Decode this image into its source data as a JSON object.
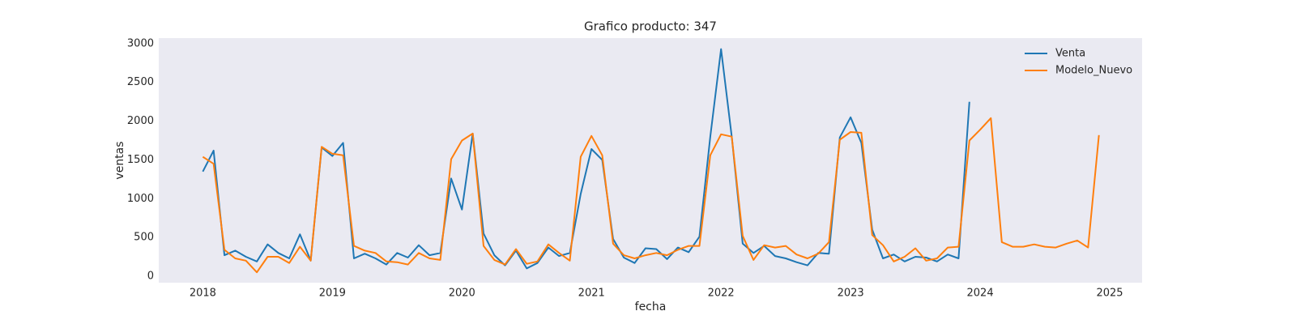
{
  "chart_data": {
    "type": "line",
    "title": "Grafico producto: 347",
    "xlabel": "fecha",
    "ylabel": "ventas",
    "x": [
      2018,
      2018.083,
      2018.167,
      2018.25,
      2018.333,
      2018.417,
      2018.5,
      2018.583,
      2018.667,
      2018.75,
      2018.833,
      2018.917,
      2019,
      2019.083,
      2019.167,
      2019.25,
      2019.333,
      2019.417,
      2019.5,
      2019.583,
      2019.667,
      2019.75,
      2019.833,
      2019.917,
      2020,
      2020.083,
      2020.167,
      2020.25,
      2020.333,
      2020.417,
      2020.5,
      2020.583,
      2020.667,
      2020.75,
      2020.833,
      2020.917,
      2021,
      2021.083,
      2021.167,
      2021.25,
      2021.333,
      2021.417,
      2021.5,
      2021.583,
      2021.667,
      2021.75,
      2021.833,
      2021.917,
      2022,
      2022.083,
      2022.167,
      2022.25,
      2022.333,
      2022.417,
      2022.5,
      2022.583,
      2022.667,
      2022.75,
      2022.833,
      2022.917,
      2023,
      2023.083,
      2023.167,
      2023.25,
      2023.333,
      2023.417,
      2023.5,
      2023.583,
      2023.667,
      2023.75,
      2023.833,
      2023.917,
      2024,
      2024.083,
      2024.167,
      2024.25,
      2024.333,
      2024.417,
      2024.5,
      2024.583,
      2024.667,
      2024.75,
      2024.833,
      2024.917
    ],
    "series": [
      {
        "name": "Venta",
        "color": "#1f77b4",
        "values": [
          1350,
          1620,
          270,
          330,
          250,
          190,
          410,
          300,
          230,
          540,
          200,
          1660,
          1550,
          1720,
          230,
          290,
          230,
          150,
          300,
          240,
          400,
          270,
          300,
          1260,
          860,
          1840,
          550,
          270,
          140,
          330,
          100,
          170,
          370,
          260,
          300,
          1060,
          1640,
          1500,
          480,
          240,
          170,
          360,
          350,
          220,
          370,
          310,
          510,
          1800,
          2930,
          1800,
          420,
          300,
          390,
          260,
          230,
          180,
          140,
          300,
          290,
          1790,
          2050,
          1720,
          600,
          230,
          280,
          190,
          250,
          240,
          190,
          280,
          230,
          2250,
          null,
          null,
          null,
          null,
          null,
          null,
          null,
          null,
          null,
          null,
          null,
          null
        ]
      },
      {
        "name": "Modelo_Nuevo",
        "color": "#ff7f0e",
        "values": [
          1540,
          1450,
          340,
          230,
          200,
          50,
          250,
          250,
          170,
          380,
          200,
          1670,
          1580,
          1560,
          390,
          330,
          300,
          190,
          180,
          150,
          300,
          230,
          210,
          1510,
          1750,
          1840,
          390,
          210,
          150,
          350,
          160,
          190,
          410,
          300,
          200,
          1540,
          1810,
          1560,
          420,
          270,
          230,
          270,
          300,
          270,
          340,
          390,
          390,
          1560,
          1830,
          1800,
          520,
          210,
          400,
          370,
          390,
          280,
          230,
          290,
          440,
          1760,
          1860,
          1850,
          530,
          400,
          190,
          250,
          360,
          200,
          230,
          370,
          380,
          1750,
          1890,
          2040,
          440,
          380,
          380,
          410,
          380,
          370,
          420,
          460,
          370,
          1820
        ]
      }
    ],
    "xlim": [
      2017.66,
      2025.25
    ],
    "xticks": [
      2018,
      2019,
      2020,
      2021,
      2022,
      2023,
      2024,
      2025
    ],
    "ylim": [
      -84,
      3072
    ],
    "yticks": [
      0,
      500,
      1000,
      1500,
      2000,
      2500,
      3000
    ],
    "grid": false,
    "legend": "upper right"
  }
}
